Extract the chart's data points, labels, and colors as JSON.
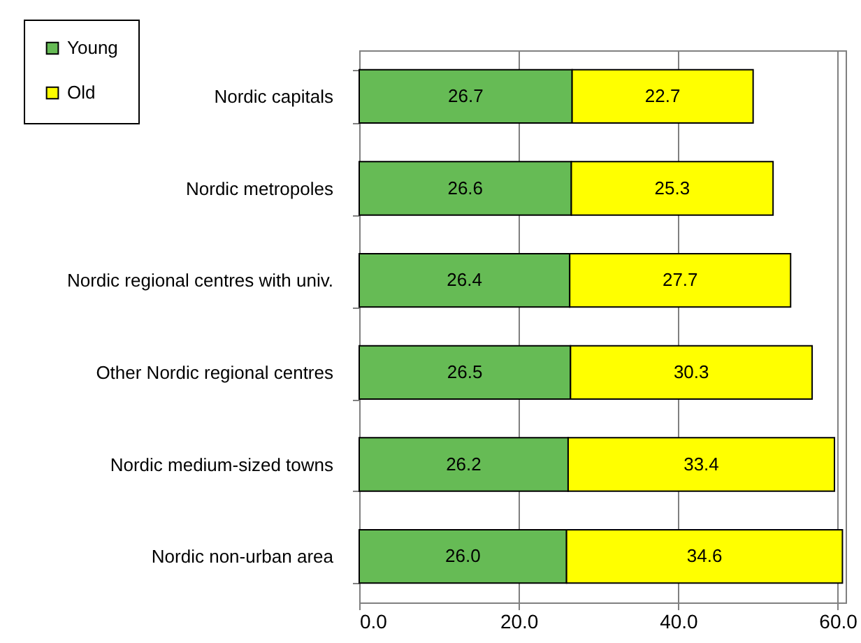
{
  "chart_data": {
    "type": "bar",
    "orientation": "horizontal",
    "stacked": true,
    "categories": [
      "Nordic capitals",
      "Nordic metropoles",
      "Nordic regional centres with univ.",
      "Other Nordic regional centres",
      "Nordic medium-sized towns",
      "Nordic non-urban area"
    ],
    "series": [
      {
        "name": "Young",
        "color": "#66bb55",
        "values": [
          26.7,
          26.6,
          26.4,
          26.5,
          26.2,
          26.0
        ],
        "value_labels": [
          "26.7",
          "26.6",
          "26.4",
          "26.5",
          "26.2",
          "26.0"
        ]
      },
      {
        "name": "Old",
        "color": "#ffff00",
        "values": [
          22.7,
          25.3,
          27.7,
          30.3,
          33.4,
          34.6
        ],
        "value_labels": [
          "22.7",
          "25.3",
          "27.7",
          "30.3",
          "33.4",
          "34.6"
        ]
      }
    ],
    "xlim": [
      0,
      61
    ],
    "xticks": [
      {
        "value": 0,
        "label": "0.0"
      },
      {
        "value": 20,
        "label": "20.0"
      },
      {
        "value": 40,
        "label": "40.0"
      },
      {
        "value": 60,
        "label": "60.0"
      }
    ],
    "grid": "x",
    "legend": "top left"
  }
}
